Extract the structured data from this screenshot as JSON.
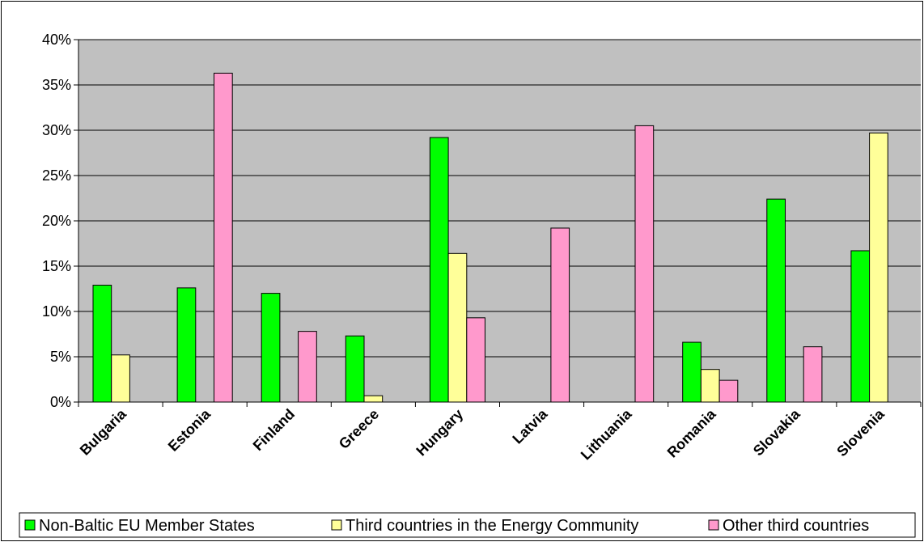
{
  "colors": {
    "plot_background": "#c0c0c0",
    "non_baltic": "#00ff00",
    "energy_community": "#ffff99",
    "other_third": "#ff99cc",
    "gridline": "#000000"
  },
  "chart_data": {
    "type": "bar",
    "title": "",
    "xlabel": "",
    "ylabel": "",
    "ylim": [
      0,
      0.4
    ],
    "yticks": [
      {
        "value": 0.0,
        "label": "0%"
      },
      {
        "value": 0.05,
        "label": "5%"
      },
      {
        "value": 0.1,
        "label": "10%"
      },
      {
        "value": 0.15,
        "label": "15%"
      },
      {
        "value": 0.2,
        "label": "20%"
      },
      {
        "value": 0.25,
        "label": "25%"
      },
      {
        "value": 0.3,
        "label": "30%"
      },
      {
        "value": 0.35,
        "label": "35%"
      },
      {
        "value": 0.4,
        "label": "40%"
      }
    ],
    "grid": true,
    "legend_position": "bottom",
    "categories": [
      "Bulgaria",
      "Estonia",
      "Finland",
      "Greece",
      "Hungary",
      "Latvia",
      "Lithuania",
      "Romania",
      "Slovakia",
      "Slovenia"
    ],
    "series": [
      {
        "name": "Non-Baltic EU Member States",
        "color_key": "non_baltic",
        "values": [
          0.129,
          0.126,
          0.12,
          0.073,
          0.292,
          0.0,
          0.0,
          0.066,
          0.224,
          0.167
        ]
      },
      {
        "name": "Third countries in the Energy Community",
        "color_key": "energy_community",
        "values": [
          0.052,
          0.0,
          0.0,
          0.007,
          0.164,
          0.0,
          0.0,
          0.036,
          0.0,
          0.297
        ]
      },
      {
        "name": "Other third countries",
        "color_key": "other_third",
        "values": [
          0.0,
          0.363,
          0.078,
          0.0,
          0.093,
          0.192,
          0.305,
          0.024,
          0.061,
          0.0
        ]
      }
    ]
  }
}
